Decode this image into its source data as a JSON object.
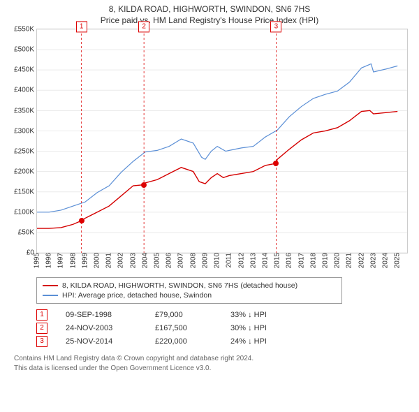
{
  "title_line1": "8, KILDA ROAD, HIGHWORTH, SWINDON, SN6 7HS",
  "title_line2": "Price paid vs. HM Land Registry's House Price Index (HPI)",
  "chart": {
    "type": "line",
    "background_color": "#ffffff",
    "grid_color": "#eaeaea",
    "border_color": "#cccccc",
    "x_years": [
      1995,
      1996,
      1997,
      1998,
      1999,
      2000,
      2001,
      2002,
      2003,
      2004,
      2005,
      2006,
      2007,
      2008,
      2009,
      2010,
      2011,
      2012,
      2013,
      2014,
      2015,
      2016,
      2017,
      2018,
      2019,
      2020,
      2021,
      2022,
      2023,
      2024,
      2025
    ],
    "xlim": [
      1995,
      2025.8
    ],
    "ylim": [
      0,
      550000
    ],
    "ytick_step": 50000,
    "ytick_prefix": "£",
    "ytick_suffix": "K",
    "ytick_divisor": 1000,
    "series": [
      {
        "name": "price_paid",
        "label": "8, KILDA ROAD, HIGHWORTH, SWINDON, SN6 7HS (detached house)",
        "color": "#d40000",
        "line_width": 1.4,
        "data": [
          [
            1995,
            60000
          ],
          [
            1996,
            60000
          ],
          [
            1997,
            62000
          ],
          [
            1998,
            70000
          ],
          [
            1998.7,
            79000
          ],
          [
            1999,
            85000
          ],
          [
            2000,
            100000
          ],
          [
            2001,
            115000
          ],
          [
            2002,
            140000
          ],
          [
            2003,
            165000
          ],
          [
            2003.9,
            167500
          ],
          [
            2004,
            172000
          ],
          [
            2005,
            180000
          ],
          [
            2006,
            195000
          ],
          [
            2007,
            210000
          ],
          [
            2008,
            200000
          ],
          [
            2008.5,
            175000
          ],
          [
            2009,
            170000
          ],
          [
            2009.5,
            185000
          ],
          [
            2010,
            195000
          ],
          [
            2010.5,
            185000
          ],
          [
            2011,
            190000
          ],
          [
            2012,
            195000
          ],
          [
            2013,
            200000
          ],
          [
            2014,
            215000
          ],
          [
            2014.9,
            220000
          ],
          [
            2015,
            230000
          ],
          [
            2016,
            255000
          ],
          [
            2017,
            278000
          ],
          [
            2018,
            295000
          ],
          [
            2019,
            300000
          ],
          [
            2020,
            308000
          ],
          [
            2021,
            325000
          ],
          [
            2022,
            348000
          ],
          [
            2022.7,
            350000
          ],
          [
            2023,
            342000
          ],
          [
            2024,
            345000
          ],
          [
            2025,
            348000
          ]
        ]
      },
      {
        "name": "hpi",
        "label": "HPI: Average price, detached house, Swindon",
        "color": "#5b8fd6",
        "line_width": 1.2,
        "data": [
          [
            1995,
            100000
          ],
          [
            1996,
            100000
          ],
          [
            1997,
            105000
          ],
          [
            1998,
            115000
          ],
          [
            1999,
            125000
          ],
          [
            2000,
            148000
          ],
          [
            2001,
            165000
          ],
          [
            2002,
            198000
          ],
          [
            2003,
            225000
          ],
          [
            2004,
            248000
          ],
          [
            2005,
            252000
          ],
          [
            2006,
            262000
          ],
          [
            2007,
            280000
          ],
          [
            2008,
            270000
          ],
          [
            2008.7,
            235000
          ],
          [
            2009,
            230000
          ],
          [
            2009.5,
            250000
          ],
          [
            2010,
            262000
          ],
          [
            2010.7,
            250000
          ],
          [
            2011,
            252000
          ],
          [
            2012,
            258000
          ],
          [
            2013,
            262000
          ],
          [
            2014,
            285000
          ],
          [
            2015,
            302000
          ],
          [
            2016,
            335000
          ],
          [
            2017,
            360000
          ],
          [
            2018,
            380000
          ],
          [
            2019,
            390000
          ],
          [
            2020,
            398000
          ],
          [
            2021,
            420000
          ],
          [
            2022,
            455000
          ],
          [
            2022.8,
            465000
          ],
          [
            2023,
            445000
          ],
          [
            2024,
            452000
          ],
          [
            2025,
            460000
          ]
        ]
      }
    ],
    "sale_markers": [
      {
        "n": "1",
        "x": 1998.7,
        "y": 79000
      },
      {
        "n": "2",
        "x": 2003.9,
        "y": 167500
      },
      {
        "n": "3",
        "x": 2014.9,
        "y": 220000
      }
    ]
  },
  "legend": {
    "series1_color": "#d40000",
    "series2_color": "#5b8fd6"
  },
  "sales": [
    {
      "n": "1",
      "date": "09-SEP-1998",
      "price": "£79,000",
      "delta": "33% ↓ HPI"
    },
    {
      "n": "2",
      "date": "24-NOV-2003",
      "price": "£167,500",
      "delta": "30% ↓ HPI"
    },
    {
      "n": "3",
      "date": "25-NOV-2014",
      "price": "£220,000",
      "delta": "24% ↓ HPI"
    }
  ],
  "footer_line1": "Contains HM Land Registry data © Crown copyright and database right 2024.",
  "footer_line2": "This data is licensed under the Open Government Licence v3.0."
}
